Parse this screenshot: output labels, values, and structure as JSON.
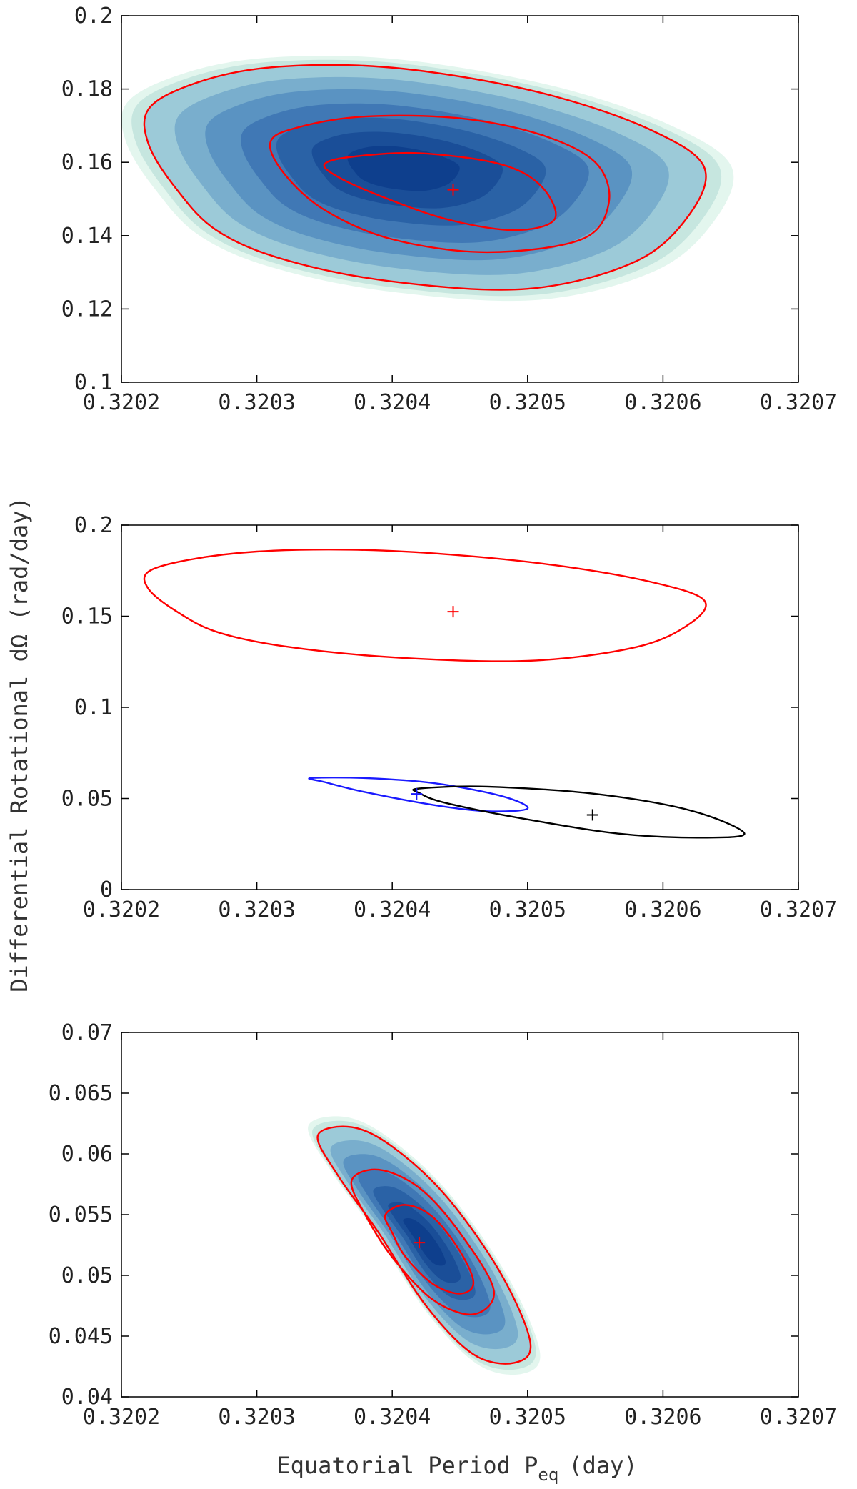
{
  "ylabel": "Differential Rotational dΩ (rad/day)",
  "xlabel": "Equatorial Period P",
  "xlabel_sub": "eq",
  "xlabel_unit": "(day)",
  "colors": {
    "red": "#ff0000",
    "blue": "#1a1aff",
    "black": "#000000",
    "fill_dark": "#0a3a8c",
    "fill_mid": "#4a86b8",
    "fill_light": "#e3f6ee"
  },
  "chart_data": [
    {
      "type": "contour",
      "xlim": [
        0.3202,
        0.3207
      ],
      "ylim": [
        0.1,
        0.2
      ],
      "xticks": [
        "0.3202",
        "0.3203",
        "0.3204",
        "0.3205",
        "0.3206",
        "0.3207"
      ],
      "yticks": [
        "0.1",
        "0.12",
        "0.14",
        "0.16",
        "0.18",
        "0.2"
      ],
      "filled": true,
      "best_fit": {
        "x": 0.320445,
        "y": 0.1525,
        "color": "#ff0000"
      },
      "contours": [
        {
          "color": "#ff0000",
          "points": [
            [
              0.32022,
              0.1745
            ],
            [
              0.32025,
              0.181
            ],
            [
              0.3203,
              0.1855
            ],
            [
              0.32037,
              0.1865
            ],
            [
              0.32044,
              0.184
            ],
            [
              0.32052,
              0.178
            ],
            [
              0.32059,
              0.169
            ],
            [
              0.32063,
              0.159
            ],
            [
              0.32062,
              0.146
            ],
            [
              0.32058,
              0.133
            ],
            [
              0.3205,
              0.1255
            ],
            [
              0.3204,
              0.1275
            ],
            [
              0.32032,
              0.1335
            ],
            [
              0.32027,
              0.1415
            ],
            [
              0.32024,
              0.153
            ],
            [
              0.32022,
              0.165
            ]
          ]
        },
        {
          "color": "#ff0000",
          "points": [
            [
              0.32031,
              0.1655
            ],
            [
              0.32033,
              0.1695
            ],
            [
              0.32038,
              0.1725
            ],
            [
              0.32045,
              0.172
            ],
            [
              0.32051,
              0.1675
            ],
            [
              0.32055,
              0.16
            ],
            [
              0.32056,
              0.149
            ],
            [
              0.32054,
              0.139
            ],
            [
              0.32047,
              0.1355
            ],
            [
              0.3204,
              0.139
            ],
            [
              0.32035,
              0.147
            ],
            [
              0.32032,
              0.157
            ]
          ]
        },
        {
          "color": "#ff0000",
          "points": [
            [
              0.32035,
              0.1595
            ],
            [
              0.32037,
              0.1615
            ],
            [
              0.32042,
              0.1625
            ],
            [
              0.32048,
              0.1595
            ],
            [
              0.32051,
              0.1535
            ],
            [
              0.32052,
              0.1445
            ],
            [
              0.32049,
              0.1415
            ],
            [
              0.32044,
              0.1445
            ],
            [
              0.32039,
              0.151
            ],
            [
              0.32036,
              0.156
            ]
          ]
        }
      ]
    },
    {
      "type": "contour",
      "xlim": [
        0.3202,
        0.3207
      ],
      "ylim": [
        0,
        0.2
      ],
      "xticks": [
        "0.3202",
        "0.3203",
        "0.3204",
        "0.3205",
        "0.3206",
        "0.3207"
      ],
      "yticks": [
        "0",
        "0.05",
        "0.1",
        "0.15",
        "0.2"
      ],
      "filled": false,
      "markers": [
        {
          "x": 0.320445,
          "y": 0.1525,
          "color": "#ff0000"
        },
        {
          "x": 0.320418,
          "y": 0.0525,
          "color": "#1a1aff"
        },
        {
          "x": 0.320548,
          "y": 0.041,
          "color": "#000000"
        }
      ],
      "contours": [
        {
          "color": "#ff0000",
          "points": [
            [
              0.32022,
              0.1745
            ],
            [
              0.32025,
              0.181
            ],
            [
              0.3203,
              0.1855
            ],
            [
              0.32037,
              0.1865
            ],
            [
              0.32044,
              0.184
            ],
            [
              0.32052,
              0.178
            ],
            [
              0.32059,
              0.169
            ],
            [
              0.32063,
              0.159
            ],
            [
              0.32062,
              0.146
            ],
            [
              0.32058,
              0.133
            ],
            [
              0.3205,
              0.1255
            ],
            [
              0.3204,
              0.1275
            ],
            [
              0.32032,
              0.1335
            ],
            [
              0.32027,
              0.1415
            ],
            [
              0.32024,
              0.153
            ],
            [
              0.32022,
              0.165
            ]
          ]
        },
        {
          "color": "#1a1aff",
          "points": [
            [
              0.32034,
              0.0612
            ],
            [
              0.32038,
              0.0612
            ],
            [
              0.32043,
              0.0585
            ],
            [
              0.32048,
              0.0515
            ],
            [
              0.3205,
              0.0445
            ],
            [
              0.32047,
              0.043
            ],
            [
              0.32043,
              0.0465
            ],
            [
              0.32038,
              0.0535
            ],
            [
              0.32035,
              0.059
            ]
          ]
        },
        {
          "color": "#000000",
          "points": [
            [
              0.32042,
              0.0555
            ],
            [
              0.32047,
              0.0565
            ],
            [
              0.32055,
              0.0525
            ],
            [
              0.32062,
              0.0435
            ],
            [
              0.32066,
              0.031
            ],
            [
              0.32063,
              0.0285
            ],
            [
              0.32057,
              0.0305
            ],
            [
              0.3205,
              0.0385
            ],
            [
              0.32044,
              0.0475
            ],
            [
              0.32042,
              0.053
            ]
          ]
        }
      ]
    },
    {
      "type": "contour",
      "xlim": [
        0.3202,
        0.3207
      ],
      "ylim": [
        0.04,
        0.07
      ],
      "xticks": [
        "0.3202",
        "0.3203",
        "0.3204",
        "0.3205",
        "0.3206",
        "0.3207"
      ],
      "yticks": [
        "0.04",
        "0.045",
        "0.05",
        "0.055",
        "0.06",
        "0.065",
        "0.07"
      ],
      "filled": true,
      "best_fit": {
        "x": 0.32042,
        "y": 0.0527,
        "color": "#ff0000"
      },
      "contours": [
        {
          "color": "#ff0000",
          "points": [
            [
              0.320345,
              0.0615
            ],
            [
              0.32037,
              0.0622
            ],
            [
              0.3204,
              0.0606
            ],
            [
              0.32044,
              0.0565
            ],
            [
              0.32048,
              0.0502
            ],
            [
              0.320502,
              0.0445
            ],
            [
              0.32049,
              0.0428
            ],
            [
              0.32046,
              0.0435
            ],
            [
              0.320425,
              0.0475
            ],
            [
              0.32039,
              0.0535
            ],
            [
              0.32036,
              0.0582
            ]
          ]
        },
        {
          "color": "#ff0000",
          "points": [
            [
              0.32037,
              0.0578
            ],
            [
              0.32039,
              0.0587
            ],
            [
              0.32042,
              0.0572
            ],
            [
              0.32045,
              0.0535
            ],
            [
              0.320475,
              0.0488
            ],
            [
              0.32046,
              0.0468
            ],
            [
              0.32043,
              0.048
            ],
            [
              0.3204,
              0.0515
            ],
            [
              0.32038,
              0.055
            ]
          ]
        },
        {
          "color": "#ff0000",
          "points": [
            [
              0.320395,
              0.055
            ],
            [
              0.32041,
              0.0558
            ],
            [
              0.32043,
              0.0548
            ],
            [
              0.32045,
              0.052
            ],
            [
              0.32046,
              0.0494
            ],
            [
              0.32045,
              0.0485
            ],
            [
              0.32043,
              0.0493
            ],
            [
              0.32041,
              0.0515
            ],
            [
              0.3204,
              0.0535
            ]
          ]
        }
      ]
    }
  ]
}
